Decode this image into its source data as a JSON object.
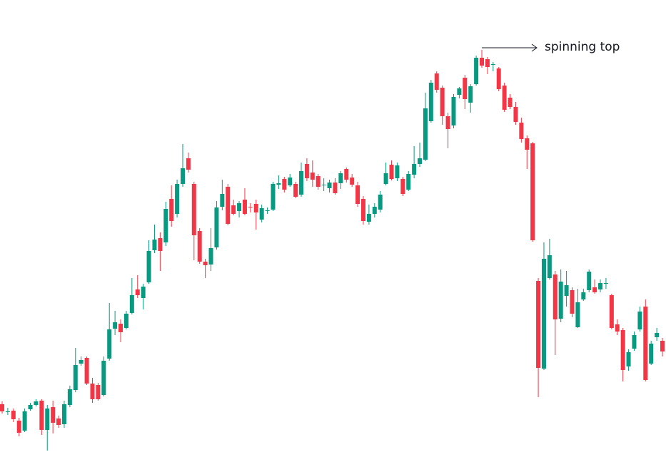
{
  "chart_data": {
    "type": "candlestick",
    "annotation": "spinning top",
    "up_color": "#089981",
    "down_color": "#f23645",
    "ylim": [
      0,
      641
    ],
    "open": [
      74,
      63,
      65,
      51,
      37,
      67,
      73,
      79,
      38,
      70,
      54,
      46,
      73,
      94,
      131,
      139,
      103,
      101,
      87,
      138,
      180,
      187,
      181,
      202,
      235,
      223,
      245,
      290,
      307,
      301,
      362,
      341,
      383,
      419,
      383,
      317,
      274,
      270,
      294,
      351,
      379,
      353,
      345,
      361,
      351,
      355,
      333,
      345,
      347,
      382,
      390,
      381,
      383,
      368,
      411,
      399,
      394,
      381,
      377,
      385,
      384,
      404,
      392,
      381,
      362,
      330,
      341,
      347,
      383,
      410,
      391,
      390,
      375,
      396,
      411,
      417,
      471,
      538,
      518,
      478,
      465,
      508,
      532,
      497,
      523,
      560,
      558,
      550,
      545,
      521,
      504,
      491,
      469,
      447,
      440,
      247,
      124,
      251,
      256,
      194,
      226,
      234,
      182,
      221,
      234,
      238,
      235,
      243,
      227,
      186,
      178,
      127,
      152,
      179,
      211,
      131,
      168,
      163
    ],
    "high": [
      78,
      69,
      68,
      55,
      68,
      76,
      81,
      81,
      73,
      79,
      58,
      79,
      100,
      153,
      141,
      141,
      111,
      104,
      141,
      216,
      205,
      193,
      205,
      251,
      255,
      243,
      304,
      326,
      315,
      358,
      381,
      389,
      439,
      427,
      386,
      321,
      278,
      321,
      359,
      389,
      383,
      361,
      359,
      377,
      356,
      361,
      354,
      350,
      386,
      395,
      393,
      397,
      386,
      413,
      419,
      416,
      397,
      391,
      389,
      391,
      401,
      406,
      397,
      386,
      366,
      354,
      356,
      373,
      413,
      416,
      413,
      393,
      401,
      436,
      441,
      511,
      529,
      541,
      521,
      483,
      509,
      519,
      536,
      523,
      563,
      571,
      561,
      554,
      547,
      525,
      509,
      498,
      476,
      451,
      442,
      251,
      301,
      306,
      261,
      263,
      261,
      238,
      236,
      236,
      263,
      249,
      249,
      251,
      229,
      193,
      181,
      151,
      176,
      211,
      221,
      163,
      181,
      167
    ],
    "low": [
      61,
      59,
      49,
      29,
      35,
      65,
      71,
      31,
      9,
      33,
      41,
      41,
      70,
      91,
      128,
      101,
      76,
      79,
      85,
      135,
      171,
      161,
      179,
      200,
      223,
      207,
      243,
      286,
      261,
      296,
      323,
      336,
      379,
      399,
      276,
      271,
      251,
      261,
      291,
      346,
      325,
      339,
      336,
      339,
      343,
      319,
      329,
      341,
      345,
      376,
      371,
      379,
      363,
      365,
      387,
      379,
      375,
      373,
      371,
      368,
      376,
      385,
      379,
      351,
      326,
      326,
      336,
      343,
      381,
      388,
      387,
      366,
      373,
      391,
      407,
      415,
      469,
      511,
      466,
      433,
      461,
      503,
      488,
      483,
      521,
      546,
      537,
      541,
      513,
      484,
      488,
      466,
      441,
      404,
      302,
      84,
      122,
      249,
      143,
      189,
      211,
      196,
      181,
      219,
      231,
      229,
      231,
      236,
      179,
      171,
      106,
      121,
      149,
      176,
      106,
      129,
      163,
      141
    ],
    "close": [
      64,
      64,
      53,
      34,
      64,
      73,
      78,
      38,
      68,
      48,
      45,
      74,
      95,
      129,
      136,
      103,
      81,
      81,
      135,
      179,
      189,
      175,
      201,
      227,
      227,
      239,
      289,
      305,
      289,
      348,
      331,
      383,
      405,
      403,
      311,
      274,
      269,
      293,
      350,
      369,
      327,
      341,
      356,
      341,
      350,
      343,
      349,
      346,
      383,
      384,
      375,
      392,
      365,
      401,
      391,
      389,
      379,
      382,
      385,
      370,
      398,
      389,
      382,
      355,
      331,
      341,
      351,
      368,
      398,
      390,
      409,
      369,
      397,
      411,
      419,
      489,
      525,
      515,
      478,
      460,
      505,
      517,
      502,
      520,
      560,
      549,
      547,
      551,
      516,
      487,
      491,
      470,
      446,
      431,
      304,
      125,
      278,
      283,
      193,
      246,
      241,
      201,
      217,
      231,
      260,
      231,
      244,
      244,
      181,
      176,
      122,
      147,
      171,
      204,
      108,
      159,
      174,
      148
    ]
  }
}
